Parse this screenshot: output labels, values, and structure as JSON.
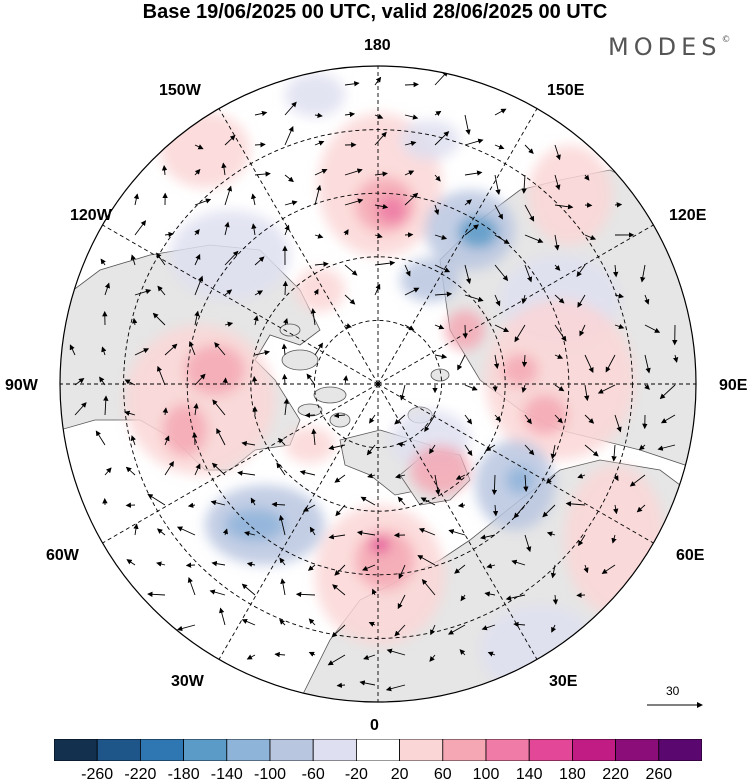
{
  "title": "Base 19/06/2025 00 UTC, valid 28/06/2025 00 UTC",
  "logo": {
    "text": "MODES",
    "mark": "©"
  },
  "map": {
    "projection": "north-polar-stereographic",
    "longitude_labels": {
      "top": "180",
      "bottom": "0",
      "left": "90W",
      "right": "90E",
      "upper_left_1": "150W",
      "upper_left_2": "120W",
      "upper_right_1": "150E",
      "upper_right_2": "120E",
      "lower_left_1": "60W",
      "lower_left_2": "30W",
      "lower_right_1": "60E",
      "lower_right_2": "30E"
    },
    "reference_vector_label": "30",
    "colors": {
      "land": "#e6e6e6",
      "coast": "#555555",
      "graticule": "#000000"
    }
  },
  "colorbar": {
    "colors": [
      "#14304f",
      "#1f5689",
      "#2f77b2",
      "#5b9bc8",
      "#8fb4d9",
      "#b9c6e0",
      "#dedff0",
      "#ffffff",
      "#fbd6d6",
      "#f5a8b4",
      "#ef7ba6",
      "#e34898",
      "#c11b84",
      "#8a0d79",
      "#5a0870"
    ],
    "tick_labels": [
      "-260",
      "-220",
      "-180",
      "-140",
      "-100",
      "-60",
      "-20",
      "20",
      "60",
      "100",
      "140",
      "180",
      "220",
      "260"
    ]
  }
}
